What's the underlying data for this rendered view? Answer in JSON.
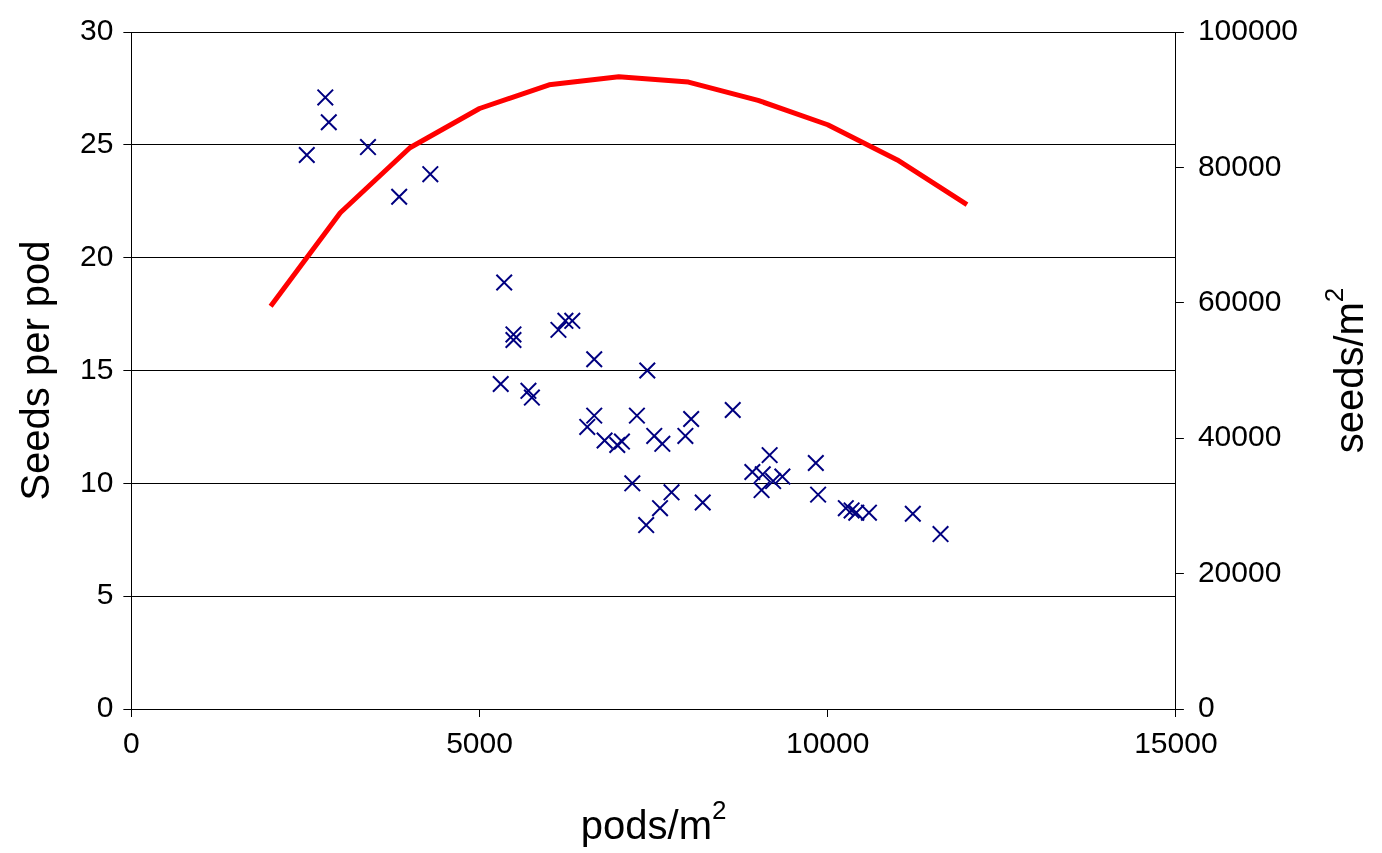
{
  "chart_data": {
    "type": "scatter",
    "xlabel": "pods/m$^{2}$",
    "ylabel": "Seeds per pod",
    "y2label": "seeds/m$^{2}$",
    "xlim": [
      0,
      15000
    ],
    "xticks": [
      0,
      5000,
      10000,
      15000
    ],
    "ylim": [
      0,
      30
    ],
    "yticks": [
      0,
      5,
      10,
      15,
      20,
      25,
      30
    ],
    "y2lim": [
      0,
      100000
    ],
    "y2ticks": [
      0,
      20000,
      40000,
      60000,
      80000,
      100000
    ],
    "grid": "y",
    "legend": false,
    "series": [
      {
        "type": "scatter",
        "color": "#000080",
        "marker": "cross",
        "x": [
          2519,
          2785,
          2835,
          3398,
          3846,
          4293,
          5354,
          5487,
          5487,
          5304,
          5702,
          5752,
          6133,
          6233,
          6332,
          6647,
          6647,
          6547,
          6796,
          6978,
          7045,
          7260,
          7409,
          7194,
          7393,
          7592,
          7509,
          7625,
          7757,
          7956,
          8039,
          8205,
          8636,
          8918,
          9050,
          9067,
          9166,
          9216,
          9349,
          9829,
          9862,
          10260,
          10343,
          10410,
          10592,
          11222,
          11620
        ],
        "values": [
          24.55,
          27.1,
          26.0,
          24.9,
          22.7,
          23.7,
          18.9,
          16.6,
          16.35,
          14.4,
          14.1,
          13.8,
          16.8,
          17.2,
          17.2,
          15.5,
          13.0,
          12.5,
          11.9,
          11.7,
          11.85,
          13.0,
          15.0,
          10.0,
          8.15,
          8.9,
          12.1,
          11.75,
          9.6,
          12.1,
          12.85,
          9.15,
          13.25,
          10.5,
          9.7,
          10.4,
          11.25,
          10.1,
          10.3,
          10.9,
          9.5,
          8.9,
          8.8,
          8.7,
          8.7,
          8.65,
          7.75
        ]
      },
      {
        "type": "line",
        "color": "#ff0000",
        "axis": "y2",
        "marker": "none",
        "x": [
          2000,
          3000,
          4000,
          5000,
          6000,
          7000,
          8000,
          9000,
          10000,
          11000,
          12000
        ],
        "values": [
          59500,
          73300,
          82900,
          88700,
          92200,
          93400,
          92600,
          89900,
          86300,
          81100,
          74500
        ]
      }
    ]
  }
}
